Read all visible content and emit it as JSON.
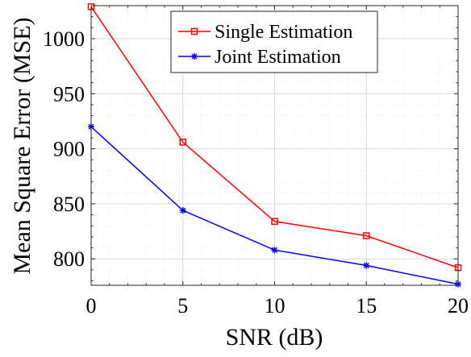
{
  "chart_data": {
    "type": "line",
    "title": "",
    "xlabel": "SNR (dB)",
    "ylabel": "Mean Square Error (MSE)",
    "x": [
      0,
      5,
      10,
      15,
      20
    ],
    "xticks": [
      "0",
      "5",
      "10",
      "15",
      "20"
    ],
    "xlim": [
      0,
      20
    ],
    "yticks": [
      "800",
      "850",
      "900",
      "950",
      "1000"
    ],
    "ylim": [
      776,
      1030
    ],
    "grid": true,
    "legend_position": "top-right",
    "series": [
      {
        "name": "Single Estimation",
        "values": [
          1029,
          906,
          834,
          821,
          792
        ],
        "color": "#ff0000",
        "marker": "square"
      },
      {
        "name": "Joint Estimation",
        "values": [
          920,
          844,
          808,
          794,
          777
        ],
        "color": "#0000ff",
        "marker": "asterisk"
      }
    ]
  }
}
